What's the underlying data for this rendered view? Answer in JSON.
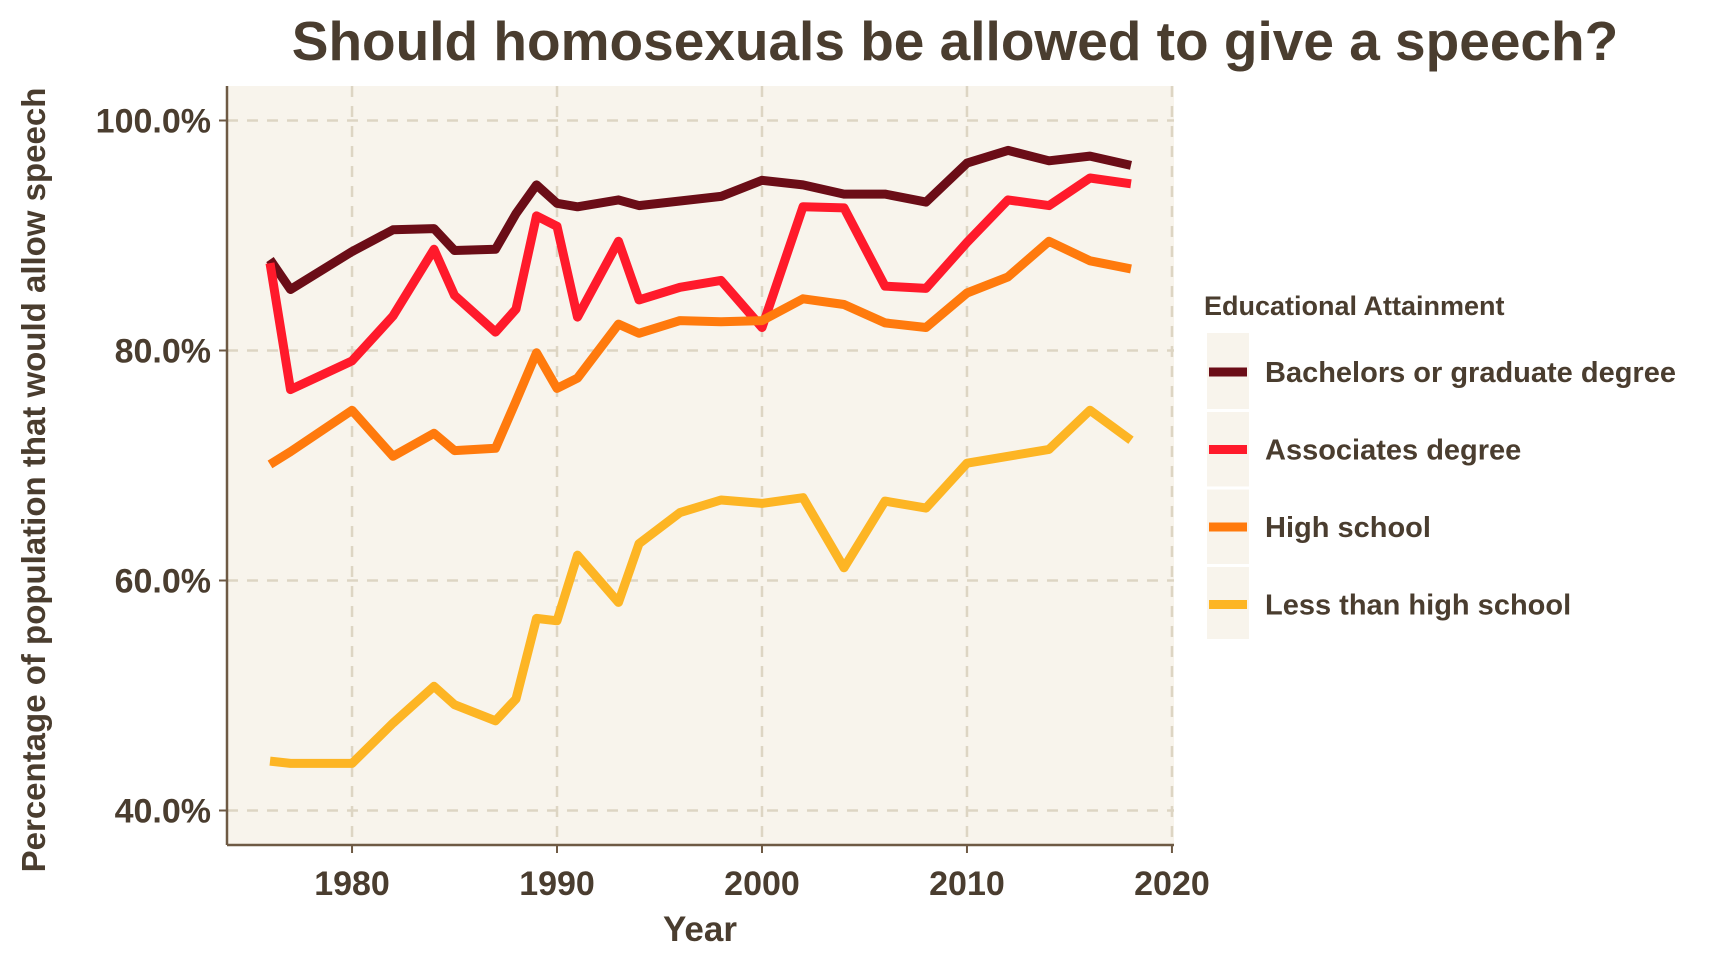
{
  "chart_data": {
    "type": "line",
    "title": "Should homosexuals be allowed to give a speech?",
    "xlabel": "Year",
    "ylabel": "Percentage of population that would allow speech",
    "xlim": [
      1973.9,
      2020.1
    ],
    "ylim": [
      37,
      103
    ],
    "x_ticks": [
      1980,
      1990,
      2000,
      2010,
      2020
    ],
    "x_tick_labels": [
      "1980",
      "1990",
      "2000",
      "2010",
      "2020"
    ],
    "y_ticks": [
      40,
      60,
      80,
      100
    ],
    "y_tick_labels": [
      "40.0%",
      "60.0%",
      "80.0%",
      "100.0%"
    ],
    "grid": true,
    "grid_style": "dashed",
    "plot_background": "#f8f4ec",
    "legend": {
      "title": "Educational Attainment",
      "placement": "right"
    },
    "x": [
      1976,
      1977,
      1980,
      1982,
      1984,
      1985,
      1987,
      1988,
      1989,
      1990,
      1991,
      1993,
      1994,
      1996,
      1998,
      2000,
      2002,
      2004,
      2006,
      2008,
      2010,
      2012,
      2014,
      2016,
      2018
    ],
    "series": [
      {
        "name": "Bachelors or graduate degree",
        "color": "#6b0d17",
        "values": [
          87.9,
          85.3,
          88.6,
          90.5,
          90.6,
          88.7,
          88.8,
          91.9,
          94.4,
          92.8,
          92.5,
          93.1,
          92.6,
          93.0,
          93.4,
          94.8,
          94.4,
          93.6,
          93.6,
          92.9,
          96.3,
          97.4,
          96.5,
          96.9,
          96.1
        ]
      },
      {
        "name": "Associates degree",
        "color": "#ff1a2b",
        "values": [
          87.6,
          76.6,
          79.1,
          83.0,
          88.8,
          84.8,
          81.6,
          83.6,
          91.7,
          90.8,
          82.9,
          89.5,
          84.4,
          85.5,
          86.1,
          82.0,
          92.5,
          92.4,
          85.6,
          85.4,
          89.4,
          93.1,
          92.6,
          95.0,
          94.5
        ]
      },
      {
        "name": "High school",
        "color": "#ff7a0d",
        "values": [
          70.1,
          71.2,
          74.8,
          70.8,
          72.8,
          71.3,
          71.5,
          75.6,
          79.8,
          76.7,
          77.6,
          82.3,
          81.5,
          82.6,
          82.5,
          82.6,
          84.5,
          84.0,
          82.4,
          82.0,
          85.0,
          86.4,
          89.5,
          87.8,
          87.1
        ]
      },
      {
        "name": "Less than high school",
        "color": "#fdb524",
        "values": [
          44.3,
          44.1,
          44.1,
          47.6,
          50.8,
          49.2,
          47.8,
          49.7,
          56.7,
          56.5,
          62.2,
          58.1,
          63.2,
          65.9,
          67.0,
          66.7,
          67.2,
          61.1,
          66.9,
          66.3,
          70.2,
          70.8,
          71.4,
          74.8,
          72.2
        ]
      }
    ]
  }
}
